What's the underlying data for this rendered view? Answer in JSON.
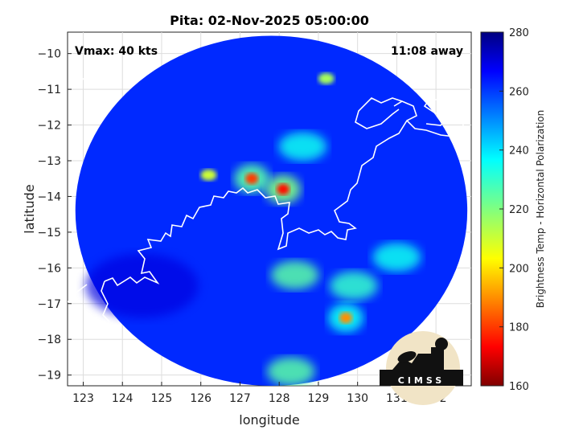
{
  "chart_data": {
    "type": "heatmap",
    "title": "Pita: 02-Nov-2025 05:00:00",
    "xlabel": "longitude",
    "ylabel": "latitude",
    "xlim": [
      122.6,
      132.9
    ],
    "ylim": [
      -19.3,
      -9.4
    ],
    "xticks": [
      123,
      124,
      125,
      126,
      127,
      128,
      129,
      130,
      131,
      132
    ],
    "yticks": [
      -10,
      -11,
      -12,
      -13,
      -14,
      -15,
      -16,
      -17,
      -18,
      -19
    ],
    "xtick_labels": [
      "123",
      "124",
      "125",
      "126",
      "127",
      "128",
      "129",
      "130",
      "131",
      "132"
    ],
    "ytick_labels": [
      "−10",
      "−11",
      "−12",
      "−13",
      "−14",
      "−15",
      "−16",
      "−17",
      "−18",
      "−19"
    ],
    "grid": true,
    "annotations": {
      "vmax": "Vmax: 40 kts",
      "distance": "11:08 away"
    },
    "colorbar": {
      "label": "Brightness Temp - Horizontal Polarization",
      "range": [
        160,
        280
      ],
      "ticks": [
        160,
        180,
        200,
        220,
        240,
        260,
        280
      ],
      "tick_labels": [
        "160",
        "180",
        "200",
        "220",
        "240",
        "260",
        "280"
      ],
      "colormap": "jet"
    },
    "features": [
      {
        "kind": "background",
        "lon": 127.8,
        "lat": -14.4,
        "radius_lon": 5.0,
        "radius_lat": 4.9,
        "tb": 262
      },
      {
        "kind": "cold_core",
        "lon": 128.1,
        "lat": -13.8,
        "tb": 175
      },
      {
        "kind": "cold_core",
        "lon": 127.3,
        "lat": -13.5,
        "tb": 180
      },
      {
        "kind": "cold_cell",
        "lon": 129.7,
        "lat": -17.4,
        "tb": 190
      },
      {
        "kind": "warm_land",
        "lon": 124.5,
        "lat": -16.5,
        "tb": 270
      },
      {
        "kind": "rain_band",
        "lon": 128.6,
        "lat": -12.6,
        "tb": 235
      },
      {
        "kind": "rain_band",
        "lon": 128.4,
        "lat": -16.2,
        "tb": 225
      },
      {
        "kind": "rain_band",
        "lon": 129.9,
        "lat": -16.5,
        "tb": 230
      },
      {
        "kind": "rain_band",
        "lon": 131.0,
        "lat": -15.7,
        "tb": 235
      },
      {
        "kind": "rain_band",
        "lon": 128.3,
        "lat": -18.9,
        "tb": 225
      },
      {
        "kind": "convective_spot",
        "lon": 126.2,
        "lat": -13.4,
        "tb": 210
      },
      {
        "kind": "convective_spot",
        "lon": 129.2,
        "lat": -10.7,
        "tb": 215
      }
    ],
    "coastline_color": "#ffffff"
  },
  "logo": {
    "text": "CIMSS"
  }
}
